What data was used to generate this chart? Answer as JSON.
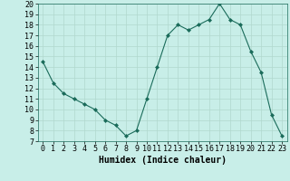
{
  "x": [
    0,
    1,
    2,
    3,
    4,
    5,
    6,
    7,
    8,
    9,
    10,
    11,
    12,
    13,
    14,
    15,
    16,
    17,
    18,
    19,
    20,
    21,
    22,
    23
  ],
  "y": [
    14.5,
    12.5,
    11.5,
    11.0,
    10.5,
    10.0,
    9.0,
    8.5,
    7.5,
    8.0,
    11.0,
    14.0,
    17.0,
    18.0,
    17.5,
    18.0,
    18.5,
    20.0,
    18.5,
    18.0,
    15.5,
    13.5,
    9.5,
    7.5
  ],
  "xlabel": "Humidex (Indice chaleur)",
  "ylim": [
    7,
    20
  ],
  "xlim_min": -0.5,
  "xlim_max": 23.5,
  "yticks": [
    7,
    8,
    9,
    10,
    11,
    12,
    13,
    14,
    15,
    16,
    17,
    18,
    19,
    20
  ],
  "xticks": [
    0,
    1,
    2,
    3,
    4,
    5,
    6,
    7,
    8,
    9,
    10,
    11,
    12,
    13,
    14,
    15,
    16,
    17,
    18,
    19,
    20,
    21,
    22,
    23
  ],
  "line_color": "#1a6b5a",
  "marker_color": "#1a6b5a",
  "bg_color": "#c8eee8",
  "grid_color": "#b0d8ce",
  "xlabel_fontsize": 7,
  "tick_fontsize": 6
}
